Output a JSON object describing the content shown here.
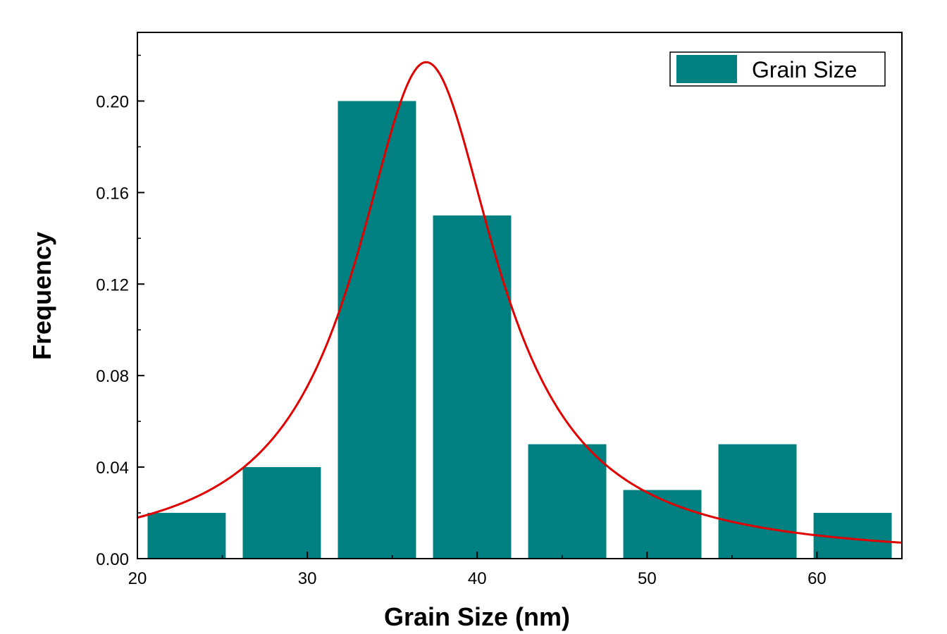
{
  "chart_data": {
    "type": "bar",
    "xlabel": "Grain Size (nm)",
    "ylabel": "Frequency",
    "xlim": [
      20,
      65
    ],
    "ylim": [
      0,
      0.23
    ],
    "bar_color": "#008080",
    "fit_color": "#e00000",
    "x_ticks": [
      20,
      30,
      40,
      50,
      60
    ],
    "x_tick_labels": [
      "20",
      "30",
      "40",
      "50",
      "60"
    ],
    "y_ticks": [
      0,
      0.04,
      0.08,
      0.12,
      0.16,
      0.2
    ],
    "y_tick_labels": [
      "0.00",
      "0.04",
      "0.08",
      "0.12",
      "0.16",
      "0.20"
    ],
    "grid": false,
    "legend": {
      "position": "top-right",
      "entries": [
        "Grain Size"
      ]
    },
    "series": [
      {
        "name": "Grain Size",
        "bars": [
          {
            "x_start": 20.6,
            "x_end": 25.2,
            "value": 0.02
          },
          {
            "x_start": 26.2,
            "x_end": 30.8,
            "value": 0.04
          },
          {
            "x_start": 31.8,
            "x_end": 36.4,
            "value": 0.2
          },
          {
            "x_start": 37.4,
            "x_end": 42.0,
            "value": 0.15
          },
          {
            "x_start": 43.0,
            "x_end": 47.6,
            "value": 0.05
          },
          {
            "x_start": 48.6,
            "x_end": 53.2,
            "value": 0.03
          },
          {
            "x_start": 54.2,
            "x_end": 58.8,
            "value": 0.05
          },
          {
            "x_start": 59.8,
            "x_end": 64.4,
            "value": 0.02
          }
        ]
      }
    ],
    "fit_curve": {
      "type": "lorentzian",
      "center": 37.0,
      "peak": 0.217,
      "hwhm": 5.1
    }
  }
}
